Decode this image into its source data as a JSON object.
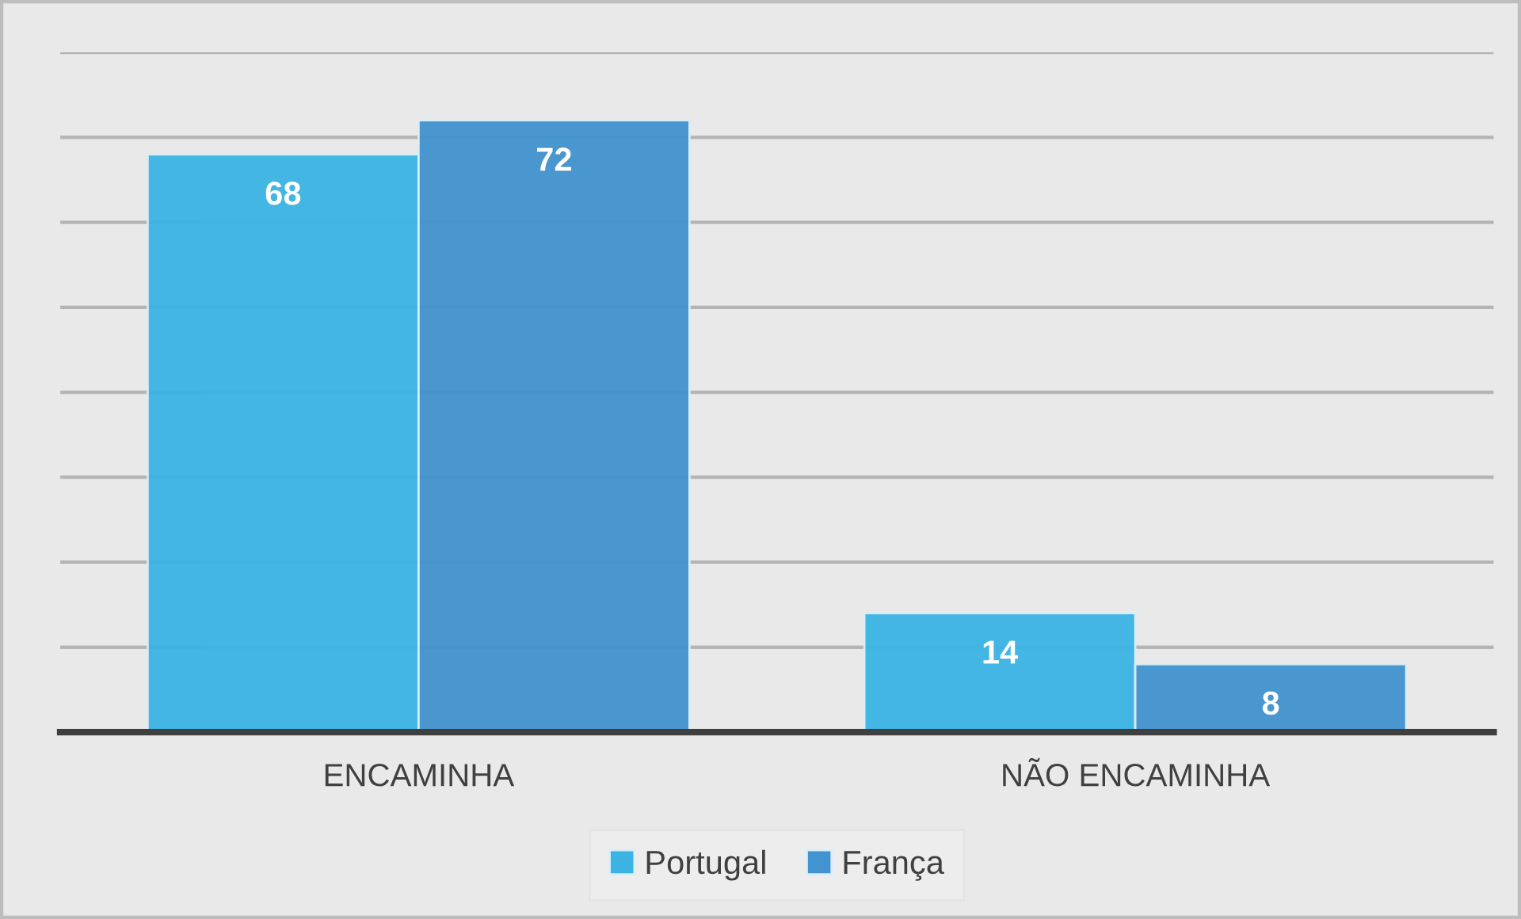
{
  "chart_data": {
    "type": "bar",
    "categories": [
      "ENCAMINHA",
      "NÃO ENCAMINHA"
    ],
    "series": [
      {
        "name": "Portugal",
        "color": "#3bb4e4",
        "values": [
          68,
          14
        ]
      },
      {
        "name": "França",
        "color": "#4293cf",
        "values": [
          72,
          8
        ]
      }
    ],
    "ylim": [
      0,
      80
    ],
    "yticks": [
      {
        "value": 0,
        "label": null
      },
      {
        "value": 10,
        "label": null
      },
      {
        "value": 20,
        "label": null
      },
      {
        "value": 30,
        "label": null
      },
      {
        "value": 40,
        "label": null
      },
      {
        "value": 50,
        "label": null
      },
      {
        "value": 60,
        "label": null
      },
      {
        "value": 70,
        "label": null
      },
      {
        "value": 80,
        "label": null
      }
    ],
    "grid": "y",
    "tick_labels": "x",
    "data_labels": true,
    "legend": "bottom"
  }
}
